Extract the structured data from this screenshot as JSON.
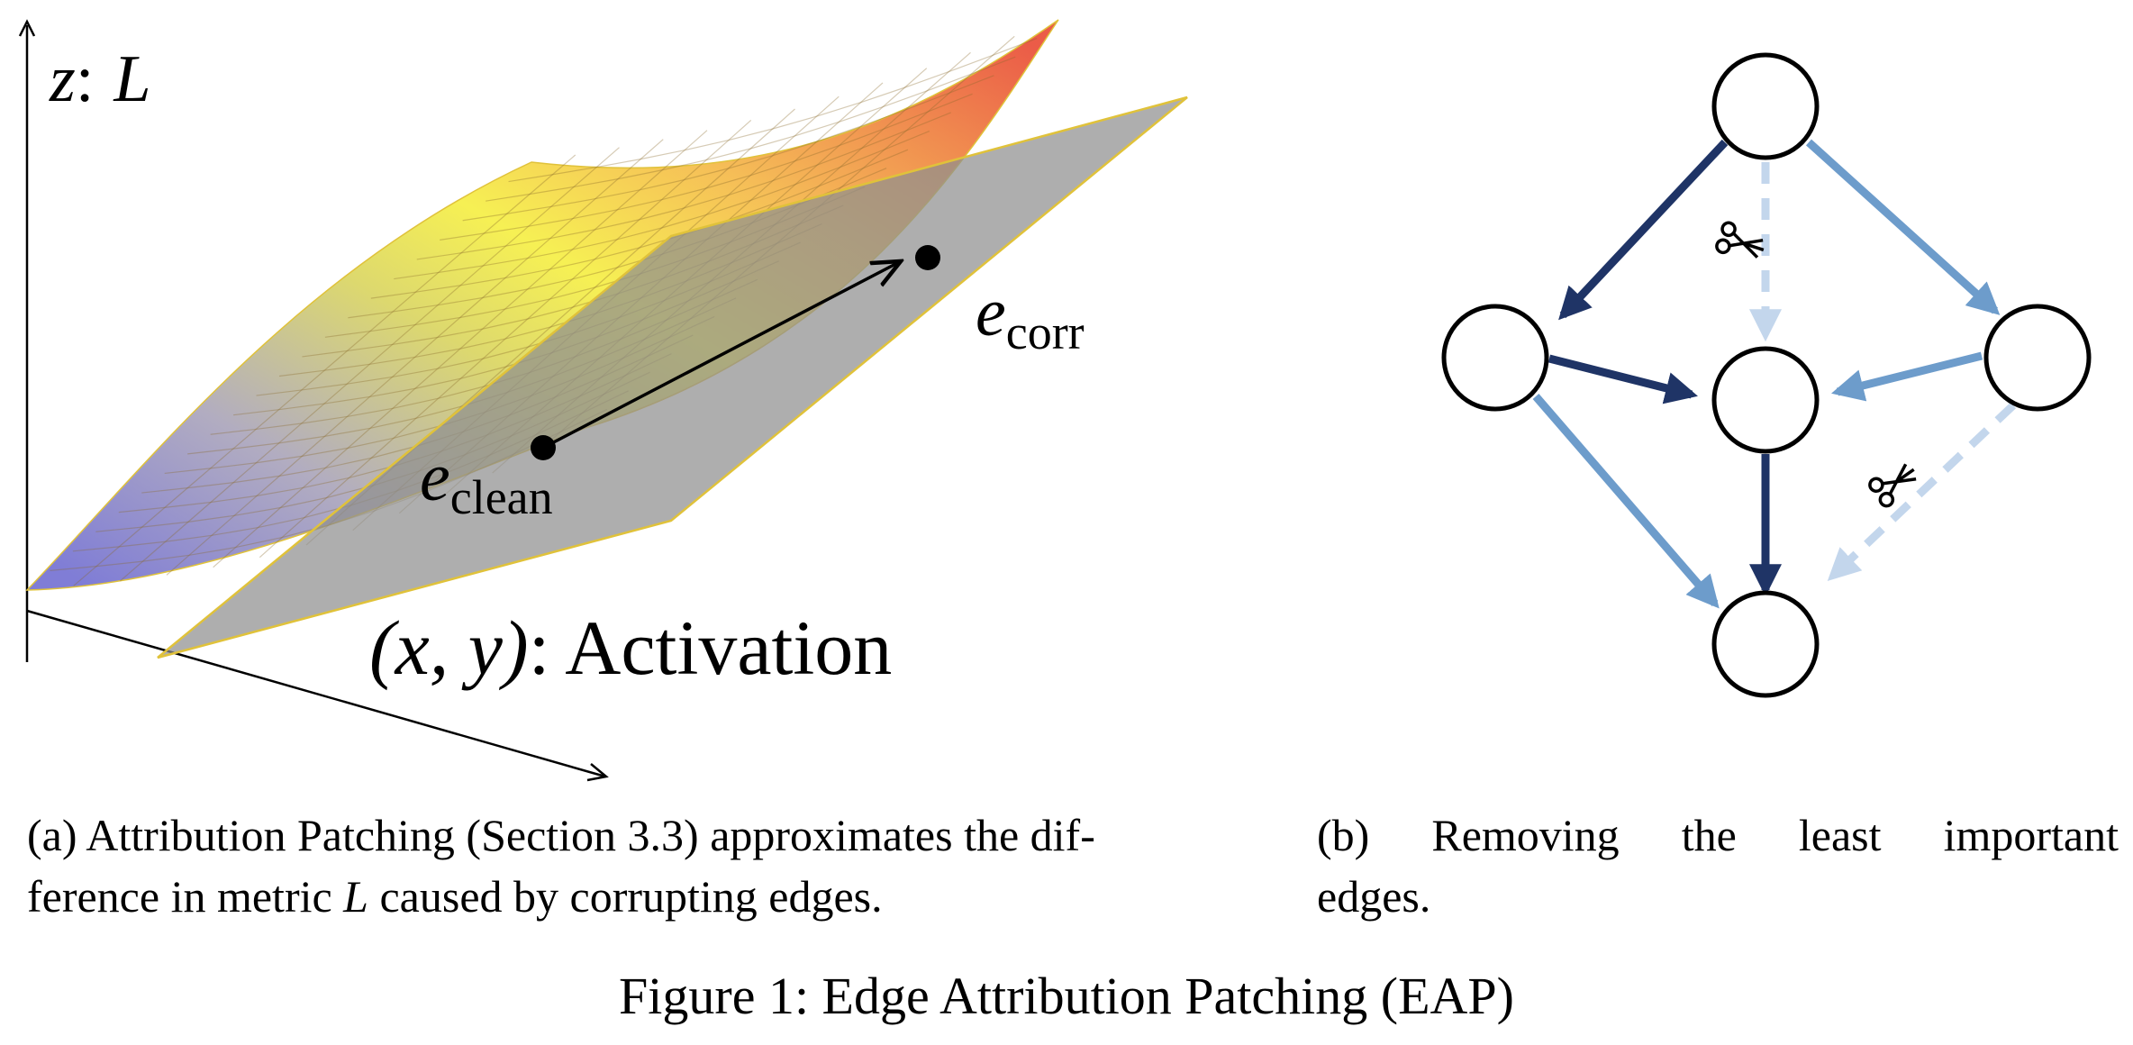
{
  "panel_a": {
    "z_label": "z",
    "z_colon": ":",
    "z_var": "L",
    "corr_base": "e",
    "corr_sub": "corr",
    "clean_base": "e",
    "clean_sub": "clean",
    "xy_label": "(x, y)",
    "xy_suffix": ": Activation"
  },
  "panel_b": {
    "nodes": [
      "top",
      "left",
      "center",
      "right",
      "bottom"
    ],
    "edges": [
      {
        "from": "top",
        "to": "left",
        "style": "strong"
      },
      {
        "from": "top",
        "to": "right",
        "style": "medium"
      },
      {
        "from": "top",
        "to": "center",
        "style": "removed"
      },
      {
        "from": "left",
        "to": "center",
        "style": "strong"
      },
      {
        "from": "right",
        "to": "center",
        "style": "medium"
      },
      {
        "from": "center",
        "to": "bottom",
        "style": "strong"
      },
      {
        "from": "left",
        "to": "bottom",
        "style": "medium"
      },
      {
        "from": "right",
        "to": "bottom",
        "style": "removed"
      }
    ],
    "colors": {
      "strong": "#1f3466",
      "medium": "#6d9ccb",
      "removed": "#c3d6ec"
    },
    "scissors_icon": "scissors-icon"
  },
  "captions": {
    "a_line1_prefix": "(a) Attribution Patching (Section 3.3) approximates the dif-",
    "a_line2_a": "ference in metric ",
    "a_line2_var": "L",
    "a_line2_b": " caused by corrupting edges.",
    "b_line1_words": [
      "(b)",
      "Removing",
      "the",
      "least",
      "important"
    ],
    "b_line2": "edges."
  },
  "figure_title": "Figure 1: Edge Attribution Patching (EAP)"
}
